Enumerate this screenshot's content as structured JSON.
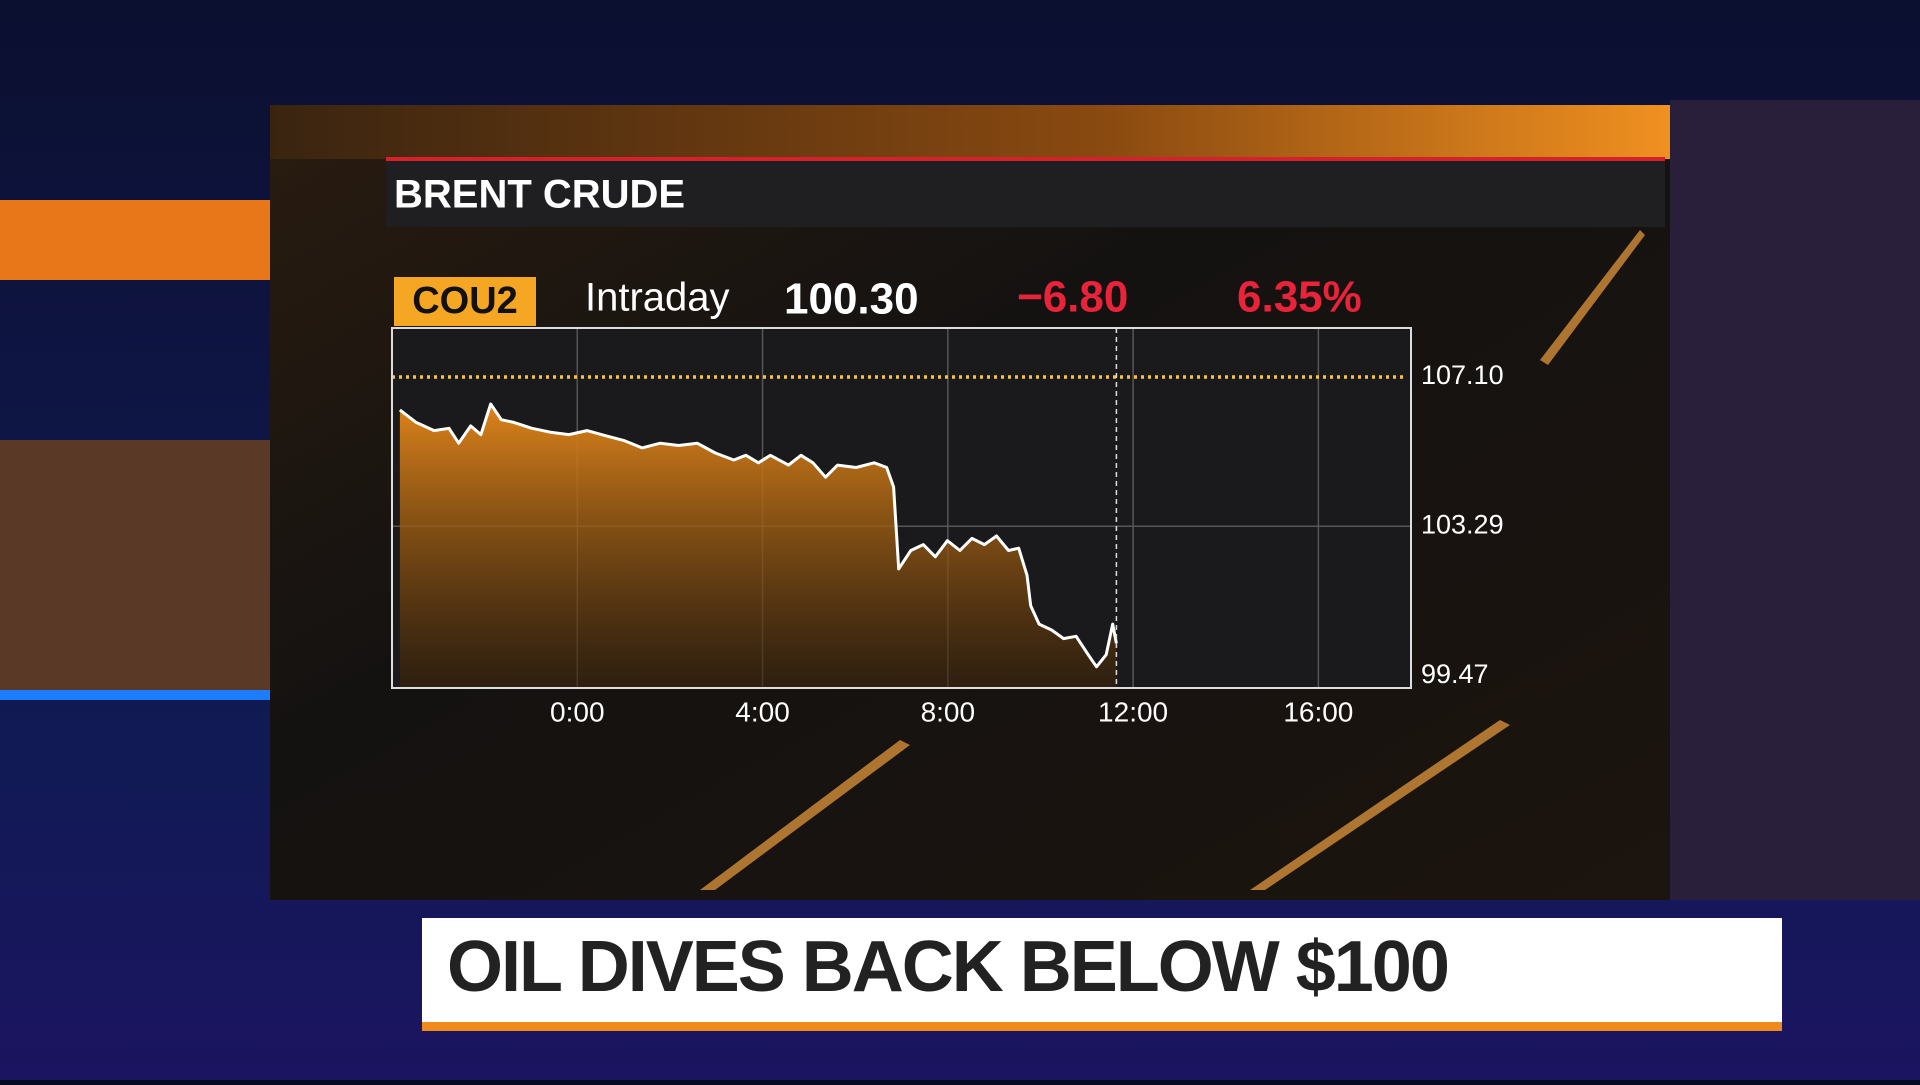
{
  "chart_data": {
    "type": "area",
    "title": "BRENT CRUDE",
    "quote": {
      "ticker": "COU2",
      "period": "Intraday",
      "last": "100.30",
      "change": "−6.80",
      "change_pct": "6.35%"
    },
    "x": [
      -3.83,
      -3.48,
      -3.09,
      -2.77,
      -2.56,
      -2.3,
      -2.08,
      -1.87,
      -1.64,
      -1.37,
      -0.98,
      -0.58,
      -0.18,
      0.21,
      0.61,
      1.0,
      1.4,
      1.79,
      2.19,
      2.59,
      2.98,
      3.38,
      3.64,
      3.91,
      4.17,
      4.56,
      4.83,
      5.09,
      5.36,
      5.62,
      6.02,
      6.41,
      6.68,
      6.83,
      6.94,
      7.2,
      7.47,
      7.73,
      7.99,
      8.26,
      8.52,
      8.79,
      9.05,
      9.31,
      9.53,
      9.71,
      9.79,
      9.97,
      10.24,
      10.5,
      10.77,
      11.03,
      11.21,
      11.42,
      11.56,
      11.64
    ],
    "values": [
      106.26,
      105.94,
      105.73,
      105.79,
      105.41,
      105.85,
      105.63,
      106.41,
      106.01,
      105.94,
      105.79,
      105.69,
      105.63,
      105.73,
      105.6,
      105.48,
      105.29,
      105.41,
      105.35,
      105.41,
      105.16,
      104.98,
      105.1,
      104.91,
      105.1,
      104.85,
      105.1,
      104.91,
      104.54,
      104.85,
      104.79,
      104.91,
      104.79,
      104.29,
      102.2,
      102.67,
      102.82,
      102.51,
      102.92,
      102.67,
      102.98,
      102.82,
      103.04,
      102.67,
      102.73,
      102.04,
      101.26,
      100.79,
      100.64,
      100.42,
      100.48,
      100.01,
      99.7,
      100.01,
      100.79,
      100.3
    ],
    "color": "#ffffff",
    "fill": "#e8891a",
    "xlim": [
      -4,
      18
    ],
    "xticks": [
      {
        "value": 0,
        "label": "0:00"
      },
      {
        "value": 4,
        "label": "4:00"
      },
      {
        "value": 8,
        "label": "8:00"
      },
      {
        "value": 12,
        "label": "12:00"
      },
      {
        "value": 16,
        "label": "16:00"
      }
    ],
    "ylim": [
      99.16,
      108.35
    ],
    "yticks": [
      {
        "value": 107.1,
        "label": "107.10"
      },
      103.29,
      99.47
    ],
    "grid": true
  },
  "headline": "OIL DIVES BACK BELOW $100"
}
